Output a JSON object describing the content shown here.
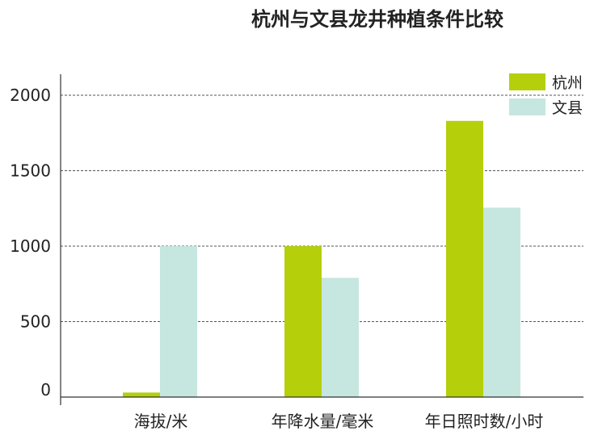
{
  "chart_data": {
    "type": "bar",
    "title": "杭州与文县龙井种植条件比较",
    "xlabel": "",
    "ylabel": "",
    "categories": [
      "海拔/米",
      "年降水量/毫米",
      "年日照时数/小时"
    ],
    "series": [
      {
        "name": "杭州",
        "color": "#b5cf0a",
        "values": [
          30,
          1000,
          1830
        ]
      },
      {
        "name": "文县",
        "color": "#c6e6e0",
        "values": [
          1000,
          790,
          1255
        ]
      }
    ],
    "yticks": [
      0,
      500,
      1000,
      1500,
      2000
    ],
    "ylim": [
      0,
      2000
    ],
    "grid": true,
    "legend_position": "top-right"
  }
}
